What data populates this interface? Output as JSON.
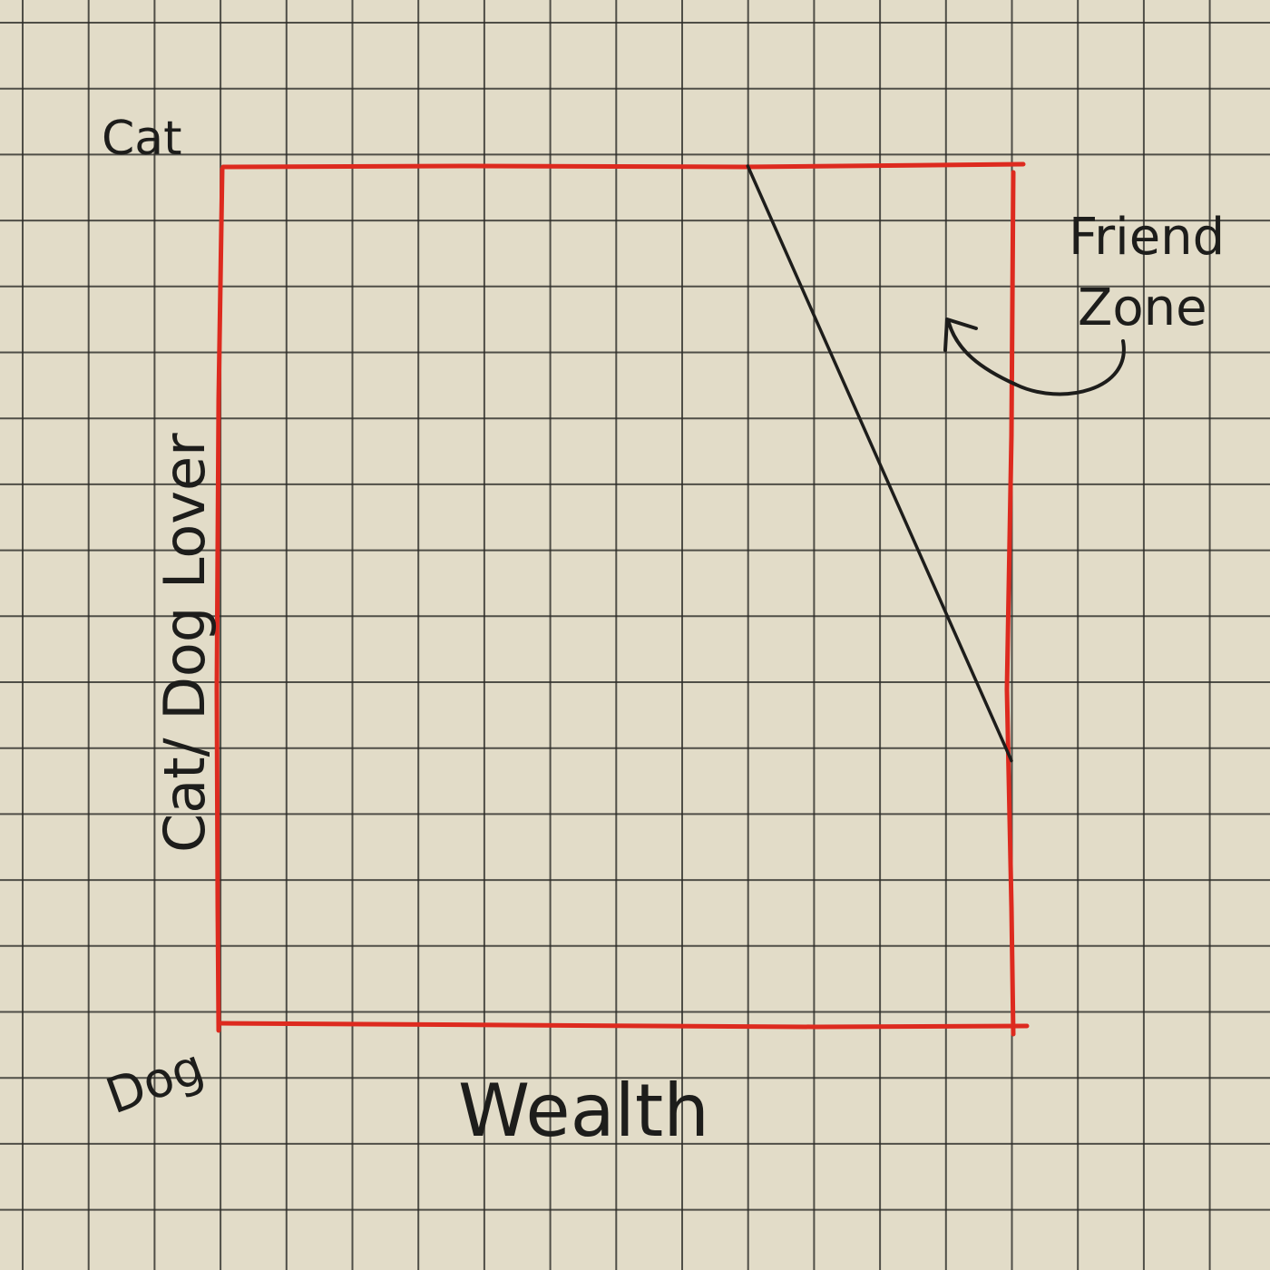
{
  "chart_data": {
    "type": "line",
    "xlabel": "Wealth",
    "ylabel": "Cat/ Dog Lover",
    "y_tick_labels": {
      "top": "Cat",
      "bottom": "Dog"
    },
    "xlim": [
      0,
      12
    ],
    "ylim": [
      0,
      13
    ],
    "grid": true,
    "series": [
      {
        "x": [
          8,
          12
        ],
        "y": [
          13,
          4
        ]
      }
    ],
    "annotations": [
      {
        "text": "Friend Zone",
        "points_to": "right edge, upper region (region right of line)"
      }
    ],
    "colors": {
      "frame": "#dd2a1f",
      "line": "#1d1d1b",
      "grid": "#2b2b27",
      "paper": "#e2dcc8"
    }
  }
}
